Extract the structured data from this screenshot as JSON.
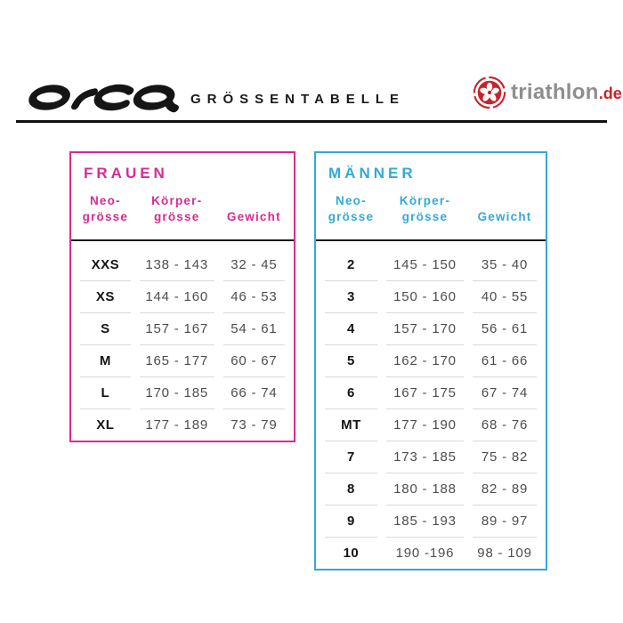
{
  "header": {
    "brand": "orca",
    "title": "GRÖSSENTABELLE",
    "site": {
      "name": "triathlon",
      "tld": ".de"
    }
  },
  "colors": {
    "frauen_accent": "#d82a93",
    "maenner_accent": "#32a9da",
    "brand_red": "#c8232b",
    "text_dark": "#1a1a1a",
    "text_value": "#4d4d4d"
  },
  "tables": [
    {
      "id": "frauen",
      "title": "FRAUEN",
      "accent": "#d82a93",
      "columns": [
        "Neo-\ngrösse",
        "Körper-\ngrösse",
        "Gewicht"
      ],
      "rows": [
        {
          "size": "XXS",
          "height": "138 - 143",
          "weight": "32 - 45"
        },
        {
          "size": "XS",
          "height": "144 - 160",
          "weight": "46 - 53"
        },
        {
          "size": "S",
          "height": "157 - 167",
          "weight": "54 - 61"
        },
        {
          "size": "M",
          "height": "165 - 177",
          "weight": "60 - 67"
        },
        {
          "size": "L",
          "height": "170 - 185",
          "weight": "66 - 74"
        },
        {
          "size": "XL",
          "height": "177 - 189",
          "weight": "73 - 79"
        }
      ]
    },
    {
      "id": "maenner",
      "title": "MÄNNER",
      "accent": "#32a9da",
      "columns": [
        "Neo-\ngrösse",
        "Körper-\ngrösse",
        "Gewicht"
      ],
      "rows": [
        {
          "size": "2",
          "height": "145 - 150",
          "weight": "35 - 40"
        },
        {
          "size": "3",
          "height": "150 - 160",
          "weight": "40 - 55"
        },
        {
          "size": "4",
          "height": "157 - 170",
          "weight": "56 - 61"
        },
        {
          "size": "5",
          "height": "162 - 170",
          "weight": "61 - 66"
        },
        {
          "size": "6",
          "height": "167 - 175",
          "weight": "67 - 74"
        },
        {
          "size": "MT",
          "height": "177 - 190",
          "weight": "68 - 76"
        },
        {
          "size": "7",
          "height": "173 - 185",
          "weight": "75 - 82"
        },
        {
          "size": "8",
          "height": "180 - 188",
          "weight": "82 - 89"
        },
        {
          "size": "9",
          "height": "185 - 193",
          "weight": "89 - 97"
        },
        {
          "size": "10",
          "height": "190 -196",
          "weight": "98 - 109"
        }
      ]
    }
  ]
}
